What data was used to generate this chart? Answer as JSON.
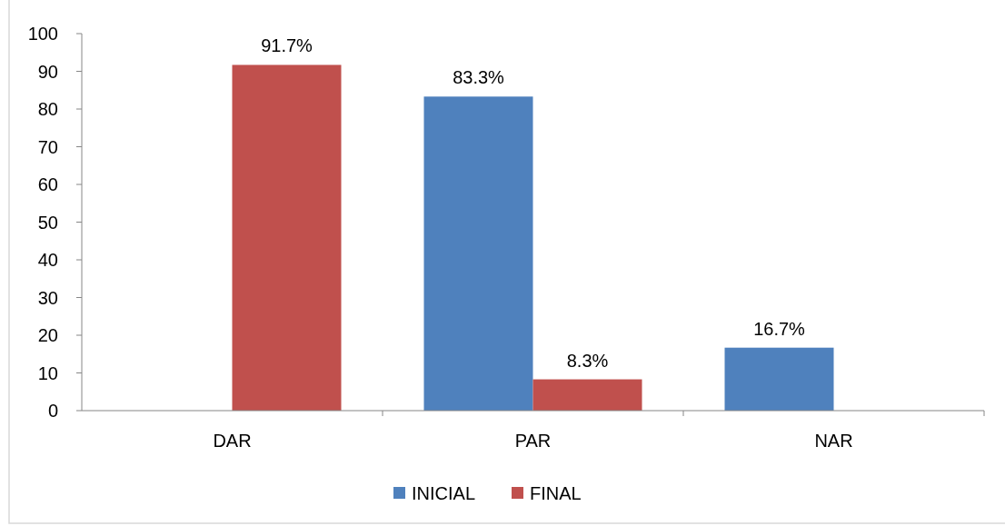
{
  "chart_data": {
    "type": "bar",
    "categories": [
      "DAR",
      "PAR",
      "NAR"
    ],
    "series": [
      {
        "name": "INICIAL",
        "color": "#4f81bd",
        "values": [
          null,
          83.3,
          16.7
        ],
        "value_labels": [
          null,
          "83.3%",
          "16.7%"
        ]
      },
      {
        "name": "FINAL",
        "color": "#c0504d",
        "values": [
          91.7,
          8.3,
          null
        ],
        "value_labels": [
          "91.7%",
          "8.3%",
          null
        ]
      }
    ],
    "ylim": [
      0,
      100
    ],
    "yticks": [
      0,
      10,
      20,
      30,
      40,
      50,
      60,
      70,
      80,
      90,
      100
    ],
    "grid": false,
    "legend": "bottom"
  }
}
